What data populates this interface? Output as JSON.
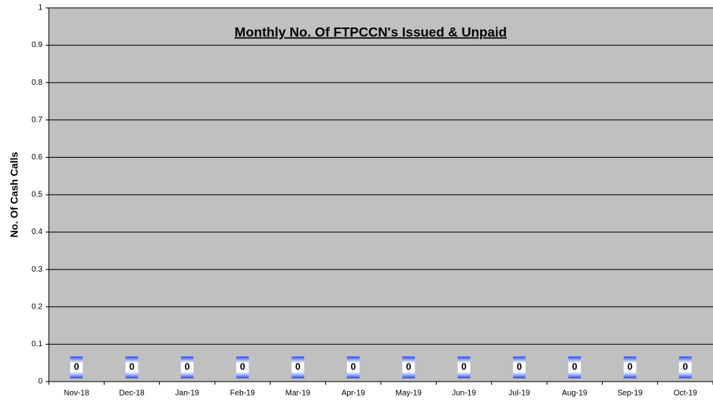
{
  "chart_data": {
    "type": "bar",
    "title": "Monthly No. Of FTPCCN's Issued & Unpaid",
    "y_label": "No. Of Cash Calls",
    "categories": [
      "Nov-18",
      "Dec-18",
      "Jan-19",
      "Feb-19",
      "Mar-19",
      "Apr-19",
      "May-19",
      "Jun-19",
      "Jul-19",
      "Aug-19",
      "Sep-19",
      "Oct-19"
    ],
    "values": [
      0,
      0,
      0,
      0,
      0,
      0,
      0,
      0,
      0,
      0,
      0,
      0
    ],
    "color": "#3355ee",
    "plot_background": "#c0c0c0",
    "ylim": [
      0,
      1
    ],
    "yticks": [
      0,
      0.1,
      0.2,
      0.3,
      0.4,
      0.5,
      0.6,
      0.7,
      0.8,
      0.9,
      1
    ],
    "grid": true
  }
}
